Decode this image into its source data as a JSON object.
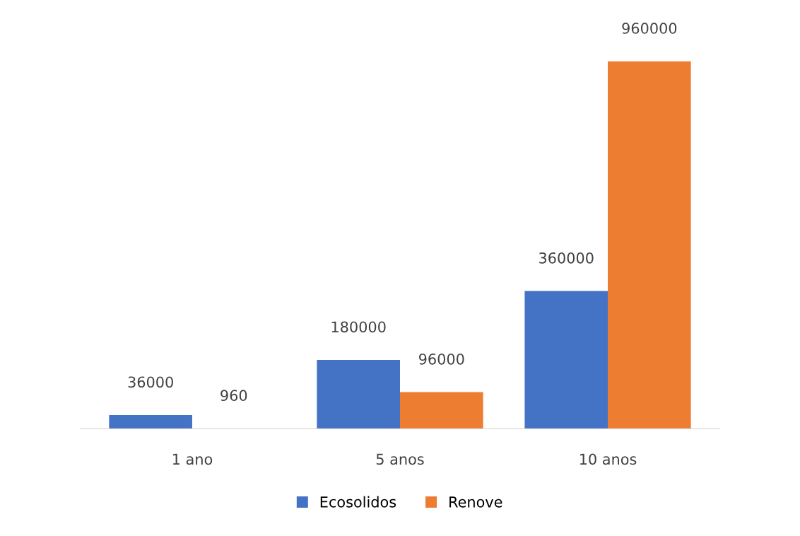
{
  "chart_data": {
    "type": "bar",
    "categories": [
      "1 ano",
      "5 anos",
      "10 anos"
    ],
    "series": [
      {
        "name": "Ecosolidos",
        "color": "#4472c4",
        "values": [
          36000,
          180000,
          360000
        ]
      },
      {
        "name": "Renove",
        "color": "#ed7d31",
        "values": [
          960,
          96000,
          960000
        ]
      }
    ],
    "data_labels": true,
    "legend": "bottom",
    "grid": false
  }
}
